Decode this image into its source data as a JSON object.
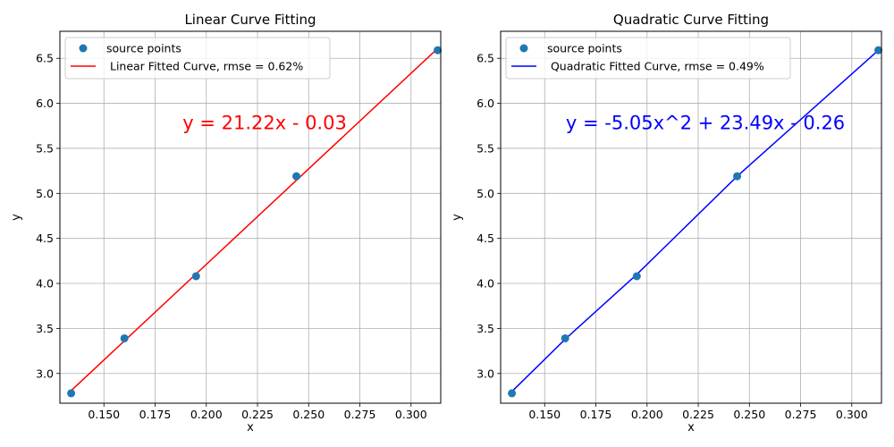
{
  "chart_data": [
    {
      "type": "scatter",
      "title": "Linear Curve Fitting",
      "xlabel": "x",
      "ylabel": "y",
      "xlim": [
        0.1285,
        0.3145
      ],
      "ylim": [
        2.67,
        6.8
      ],
      "x_ticks": [
        0.15,
        0.175,
        0.2,
        0.225,
        0.25,
        0.275,
        0.3
      ],
      "x_tick_labels": [
        "0.150",
        "0.175",
        "0.200",
        "0.225",
        "0.250",
        "0.275",
        "0.300"
      ],
      "y_ticks": [
        3.0,
        3.5,
        4.0,
        4.5,
        5.0,
        5.5,
        6.0,
        6.5
      ],
      "y_tick_labels": [
        "3.0",
        "3.5",
        "4.0",
        "4.5",
        "5.0",
        "5.5",
        "6.0",
        "6.5"
      ],
      "grid": true,
      "legend_position": "upper-left",
      "series": [
        {
          "name": "source points",
          "kind": "scatter",
          "color": "#1f77b4",
          "x": [
            0.134,
            0.16,
            0.195,
            0.244,
            0.313
          ],
          "y": [
            2.78,
            3.39,
            4.08,
            5.19,
            6.59
          ]
        },
        {
          "name": " Linear Fitted Curve, rmse = 0.62%",
          "kind": "line",
          "color": "#ff0000",
          "x": [
            0.134,
            0.313
          ],
          "y": [
            2.81,
            6.61
          ]
        }
      ],
      "annotation": {
        "text": "y =  21.22x - 0.03",
        "color": "#ff0000",
        "x": 0.2285,
        "y": 5.78
      }
    },
    {
      "type": "scatter",
      "title": "Quadratic Curve Fitting",
      "xlabel": "x",
      "ylabel": "y",
      "xlim": [
        0.1285,
        0.3145
      ],
      "ylim": [
        2.67,
        6.8
      ],
      "x_ticks": [
        0.15,
        0.175,
        0.2,
        0.225,
        0.25,
        0.275,
        0.3
      ],
      "x_tick_labels": [
        "0.150",
        "0.175",
        "0.200",
        "0.225",
        "0.250",
        "0.275",
        "0.300"
      ],
      "y_ticks": [
        3.0,
        3.5,
        4.0,
        4.5,
        5.0,
        5.5,
        6.0,
        6.5
      ],
      "y_tick_labels": [
        "3.0",
        "3.5",
        "4.0",
        "4.5",
        "5.0",
        "5.5",
        "6.0",
        "6.5"
      ],
      "grid": true,
      "legend_position": "upper-left",
      "series": [
        {
          "name": "source points",
          "kind": "scatter",
          "color": "#1f77b4",
          "x": [
            0.134,
            0.16,
            0.195,
            0.244,
            0.313
          ],
          "y": [
            2.78,
            3.39,
            4.08,
            5.19,
            6.59
          ]
        },
        {
          "name": " Quadratic Fitted Curve, rmse = 0.49%",
          "kind": "line",
          "color": "#0000ff",
          "x": [
            0.134,
            0.16,
            0.195,
            0.244,
            0.313
          ],
          "y": [
            2.8,
            3.38,
            4.1,
            5.19,
            6.59
          ]
        }
      ],
      "annotation": {
        "text": "y = -5.05x^2 + 23.49x - 0.26",
        "color": "#0000ff",
        "x": 0.2285,
        "y": 5.78
      }
    }
  ]
}
